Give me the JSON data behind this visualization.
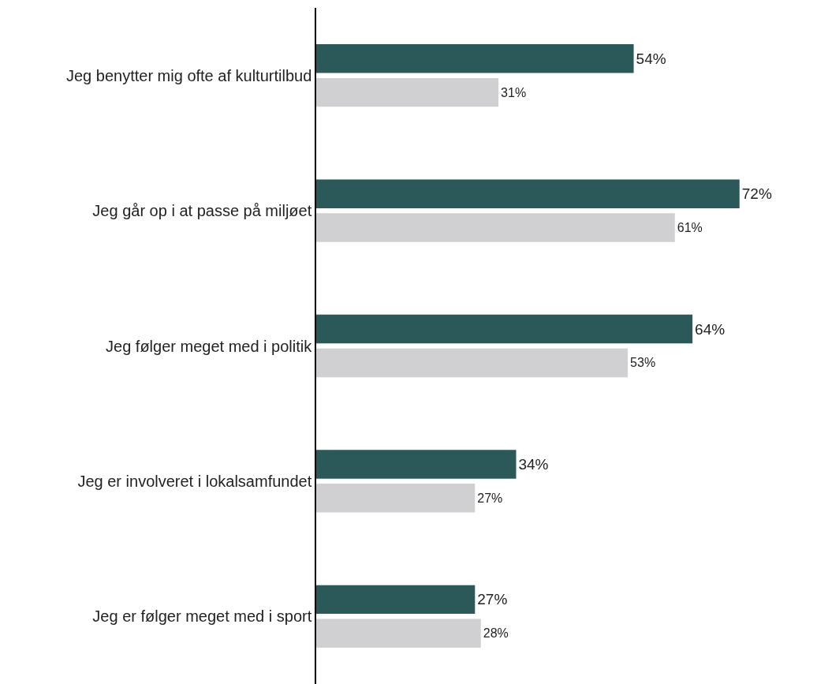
{
  "chart_data": {
    "type": "bar",
    "orientation": "horizontal",
    "categories": [
      "Jeg benytter mig ofte af kulturtilbud",
      "Jeg går op i at passe på miljøet",
      "Jeg følger meget med i politik",
      "Jeg er involveret i lokalsamfundet",
      "Jeg er følger meget med i sport"
    ],
    "series": [
      {
        "color": "#2b5858",
        "values": [
          54,
          72,
          64,
          34,
          27
        ],
        "value_labels": [
          "54%",
          "72%",
          "64%",
          "34%",
          "27%"
        ]
      },
      {
        "color": "#d0d0d2",
        "values": [
          31,
          61,
          53,
          27,
          28
        ],
        "value_labels": [
          "31%",
          "61%",
          "53%",
          "27%",
          "28%"
        ]
      }
    ],
    "tick_labels": "y"
  }
}
